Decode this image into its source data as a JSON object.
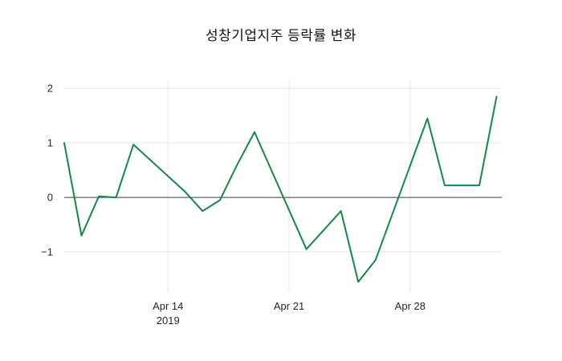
{
  "title": "성창기업지주 등락률 변화",
  "chart_data": {
    "type": "line",
    "title": "성창기업지주 등락률 변화",
    "xlabel": "",
    "ylabel": "",
    "x_note": "day number within April 2019; values above 30 fall in early May",
    "x": [
      8,
      9,
      10,
      11,
      12,
      15,
      16,
      17,
      18,
      19,
      22,
      23,
      24,
      25,
      26,
      29,
      30,
      32,
      33
    ],
    "y": [
      1.0,
      -0.7,
      0.02,
      0.0,
      0.97,
      0.1,
      -0.25,
      -0.05,
      0.6,
      1.2,
      -0.95,
      -0.6,
      -0.25,
      -1.55,
      -1.15,
      1.45,
      0.22,
      0.22,
      1.85
    ],
    "xlim": [
      8,
      33.3
    ],
    "ylim": [
      -1.75,
      2.15
    ],
    "x_ticks": [
      {
        "pos": 14,
        "label": "Apr 14",
        "sublabel": "2019"
      },
      {
        "pos": 21,
        "label": "Apr 21",
        "sublabel": ""
      },
      {
        "pos": 28,
        "label": "Apr 28",
        "sublabel": ""
      }
    ],
    "y_ticks": [
      {
        "pos": 2,
        "label": "2"
      },
      {
        "pos": 1,
        "label": "1"
      },
      {
        "pos": 0,
        "label": "0"
      },
      {
        "pos": -1,
        "label": "−1"
      }
    ],
    "grid": true,
    "legend": false,
    "colors": {
      "line": "#128a46",
      "grid": "#e6e6e6",
      "zero_line": "#3a3a3a",
      "text": "#262626",
      "background": "#ffffff"
    }
  }
}
